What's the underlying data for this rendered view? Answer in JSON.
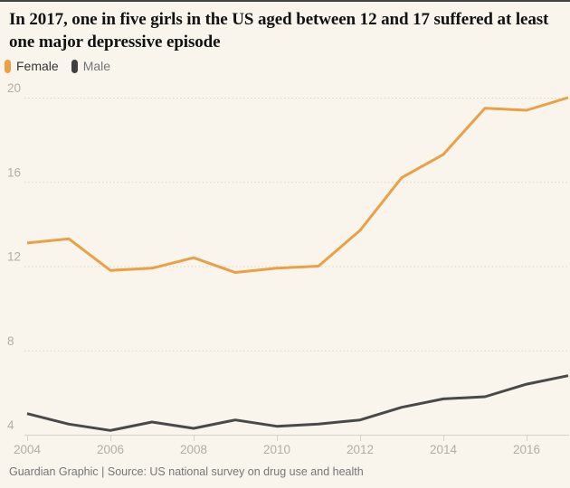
{
  "page": {
    "background_color": "#f9f5ec",
    "top_rule_color": "#424242"
  },
  "header": {
    "title": "In 2017, one in five girls in the US aged between 12 and 17 suffered at least one major depressive episode"
  },
  "legend": {
    "items": [
      {
        "label": "Female",
        "color": "#eba045",
        "label_color": "#333333"
      },
      {
        "label": "Male",
        "color": "#404040",
        "label_color": "#767676"
      }
    ]
  },
  "footer": {
    "text": "Guardian Graphic | Source: US national survey on drug use and health"
  },
  "chart_data": {
    "type": "line",
    "title": "In 2017, one in five girls in the US aged between 12 and 17 suffered at least one major depressive episode",
    "xlabel": "",
    "ylabel": "",
    "x": [
      2004,
      2005,
      2006,
      2007,
      2008,
      2009,
      2010,
      2011,
      2012,
      2013,
      2014,
      2015,
      2016,
      2017
    ],
    "series": [
      {
        "name": "Female",
        "color": "#eba045",
        "values": [
          13.1,
          13.3,
          11.8,
          11.9,
          12.4,
          11.7,
          11.9,
          12.0,
          13.7,
          16.2,
          17.3,
          19.5,
          19.4,
          20.0
        ]
      },
      {
        "name": "Male",
        "color": "#494949",
        "values": [
          5.0,
          4.5,
          4.2,
          4.6,
          4.3,
          4.7,
          4.4,
          4.5,
          4.7,
          5.3,
          5.7,
          5.8,
          6.4,
          6.8
        ]
      }
    ],
    "ylim": [
      4,
      20
    ],
    "yticks": [
      4,
      8,
      12,
      16,
      20
    ],
    "xticks": [
      2004,
      2006,
      2008,
      2010,
      2012,
      2014,
      2016
    ],
    "grid": "horizontal-dotted",
    "legend_position": "top-left",
    "axis_label_color": "#b2aea2",
    "grid_color": "#d8d3c6"
  }
}
